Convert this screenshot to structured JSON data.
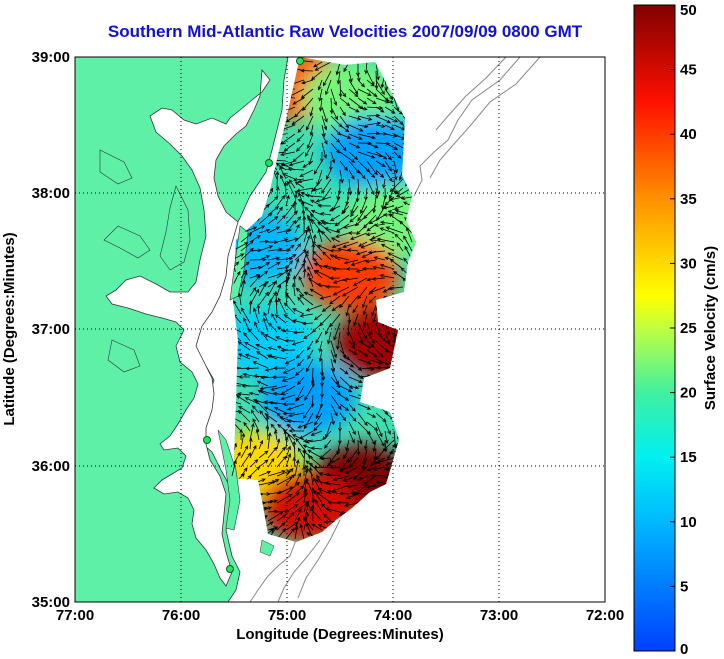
{
  "title": "Southern Mid-Atlantic Raw Velocities 2007/09/09 0800 GMT",
  "x_axis": {
    "label": "Longitude (Degrees:Minutes)",
    "ticks": [
      "77:00",
      "76:00",
      "75:00",
      "74:00",
      "73:00",
      "72:00"
    ]
  },
  "y_axis": {
    "label": "Latitude (Degrees:Minutes)",
    "ticks": [
      "39:00",
      "38:00",
      "37:00",
      "36:00",
      "35:00"
    ]
  },
  "colorbar": {
    "label": "Surface Velocity (cm/s)",
    "ticks": [
      "50",
      "45",
      "40",
      "35",
      "30",
      "25",
      "20",
      "15",
      "10",
      "5",
      "0"
    ],
    "min": 0,
    "max": 50
  },
  "colors": {
    "title": "#1010d8",
    "land": "#5ff0a8",
    "grid": "#000000"
  },
  "chart_data": {
    "type": "heatmap",
    "title": "Southern Mid-Atlantic Raw Velocities 2007/09/09 0800 GMT",
    "xlabel": "Longitude (Degrees:Minutes)",
    "ylabel": "Latitude (Degrees:Minutes)",
    "x_range": [
      -77,
      -72
    ],
    "y_range": [
      35,
      39
    ],
    "grid": true,
    "value_label": "Surface Velocity (cm/s)",
    "value_range": [
      0,
      50
    ],
    "regions": [
      {
        "lon": -74.9,
        "lat": 38.8,
        "value": 38
      },
      {
        "lon": -74.4,
        "lat": 38.7,
        "value": 22
      },
      {
        "lon": -74.2,
        "lat": 38.3,
        "value": 8
      },
      {
        "lon": -74.0,
        "lat": 37.8,
        "value": 22
      },
      {
        "lon": -75.3,
        "lat": 37.6,
        "value": 10
      },
      {
        "lon": -74.4,
        "lat": 37.4,
        "value": 40
      },
      {
        "lon": -74.1,
        "lat": 36.9,
        "value": 48
      },
      {
        "lon": -75.2,
        "lat": 36.9,
        "value": 12
      },
      {
        "lon": -74.8,
        "lat": 36.5,
        "value": 8
      },
      {
        "lon": -75.3,
        "lat": 36.0,
        "value": 30
      },
      {
        "lon": -74.3,
        "lat": 35.9,
        "value": 50
      },
      {
        "lon": -74.8,
        "lat": 35.7,
        "value": 45
      }
    ]
  }
}
